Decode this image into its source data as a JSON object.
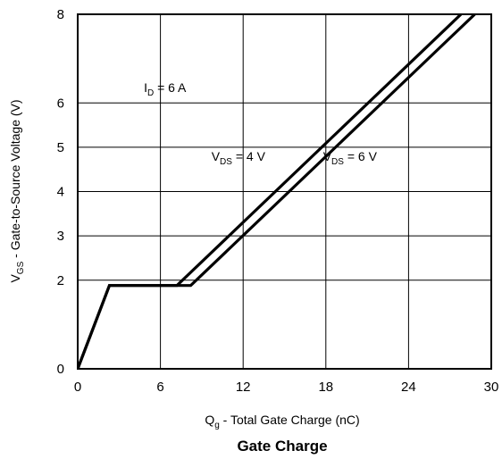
{
  "chart_data": {
    "type": "line",
    "title": "Gate Charge",
    "xlabel": {
      "main": "Q",
      "sub": "g",
      "rest": " - Total Gate Charge (nC)"
    },
    "ylabel": {
      "main": "V",
      "sub": "GS",
      "rest": " - Gate-to-Source Voltage (V)"
    },
    "xlim": [
      0,
      30
    ],
    "ylim": [
      0,
      8
    ],
    "xticks": [
      0,
      6,
      12,
      18,
      24,
      30
    ],
    "yticks": [
      0,
      2,
      3,
      4,
      5,
      6,
      8
    ],
    "grid": true,
    "series": [
      {
        "name": "VDS = 4 V",
        "x": [
          0,
          2.3,
          7.2,
          27.8
        ],
        "y": [
          0,
          1.88,
          1.88,
          8.0
        ]
      },
      {
        "name": "VDS = 6 V",
        "x": [
          0,
          2.3,
          8.2,
          28.8
        ],
        "y": [
          0,
          1.88,
          1.88,
          8.0
        ]
      }
    ],
    "annotations": [
      {
        "id": "id",
        "main": "I",
        "sub": "D",
        "rest": " = 6 A",
        "x": 4.8,
        "y": 6.25
      },
      {
        "id": "vds4",
        "main": "V",
        "sub": "DS",
        "rest": " = 4 V",
        "x": 9.7,
        "y": 4.7
      },
      {
        "id": "vds6",
        "main": "V",
        "sub": "DS",
        "rest": " = 6 V",
        "x": 17.8,
        "y": 4.7
      }
    ]
  }
}
